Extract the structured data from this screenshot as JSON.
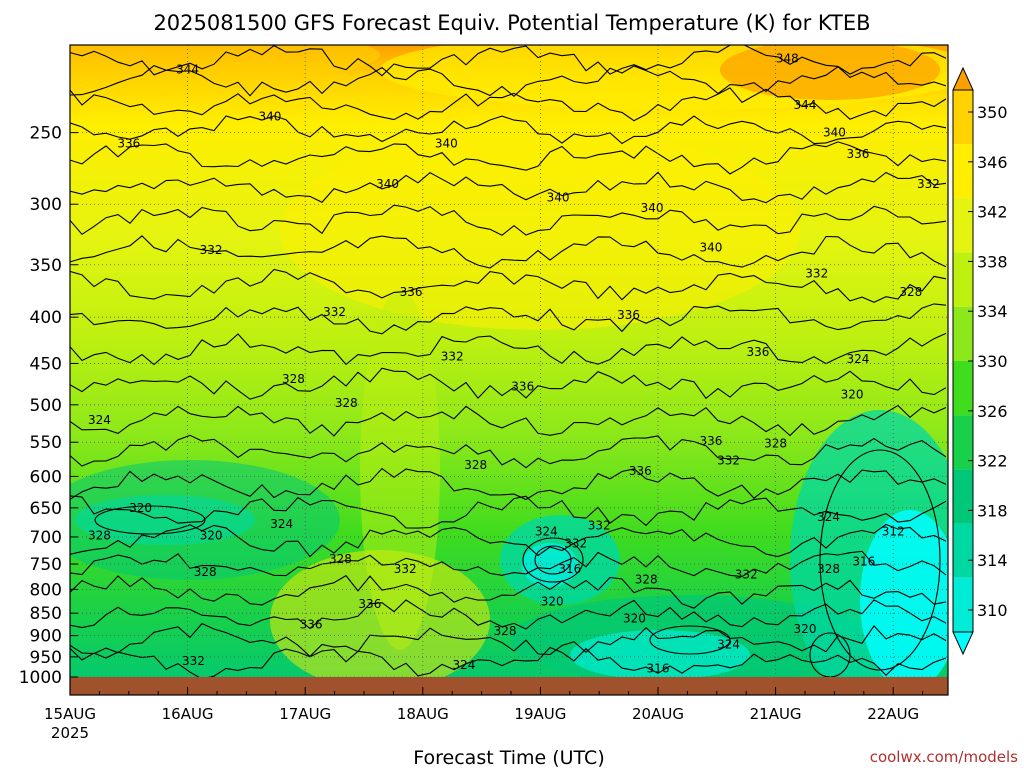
{
  "chart_data": {
    "type": "contour",
    "title": "2025081500 GFS Forecast Equiv. Potential Temperature (K) for KTEB",
    "xlabel": "Forecast Time (UTC)",
    "ylabel": "",
    "x_ticks": [
      "15AUG",
      "16AUG",
      "17AUG",
      "18AUG",
      "19AUG",
      "20AUG",
      "21AUG",
      "22AUG"
    ],
    "x_year": "2025",
    "xlim_days": [
      0,
      7.5
    ],
    "y_ticks": [
      250,
      300,
      350,
      400,
      450,
      500,
      550,
      600,
      650,
      700,
      750,
      800,
      850,
      900,
      950,
      1000
    ],
    "ylim_hpa": [
      200,
      1000
    ],
    "y_scale": "log-pressure (inverted)",
    "grid": true,
    "colorbar": {
      "levels": [
        310,
        314,
        318,
        322,
        326,
        330,
        334,
        338,
        342,
        346,
        350
      ],
      "labels": [
        "310",
        "314",
        "318",
        "322",
        "326",
        "330",
        "334",
        "338",
        "342",
        "346",
        "350"
      ],
      "colors": [
        "#00ffff",
        "#00ecd6",
        "#00d8a4",
        "#00c878",
        "#18d04a",
        "#40dc1e",
        "#8ce81a",
        "#bef010",
        "#e4f410",
        "#ffee00",
        "#ffd200",
        "#fca000"
      ],
      "extend": "both"
    },
    "contour_labels": [
      {
        "t": 1.0,
        "p": 213,
        "v": "344"
      },
      {
        "t": 1.7,
        "p": 240,
        "v": "340"
      },
      {
        "t": 0.5,
        "p": 257,
        "v": "336"
      },
      {
        "t": 3.2,
        "p": 257,
        "v": "340"
      },
      {
        "t": 2.7,
        "p": 285,
        "v": "340"
      },
      {
        "t": 4.15,
        "p": 295,
        "v": "340"
      },
      {
        "t": 4.95,
        "p": 303,
        "v": "340"
      },
      {
        "t": 5.45,
        "p": 335,
        "v": "340"
      },
      {
        "t": 6.1,
        "p": 207,
        "v": "348"
      },
      {
        "t": 6.25,
        "p": 233,
        "v": "344"
      },
      {
        "t": 6.5,
        "p": 250,
        "v": "340"
      },
      {
        "t": 6.7,
        "p": 264,
        "v": "336"
      },
      {
        "t": 7.3,
        "p": 285,
        "v": "332"
      },
      {
        "t": 1.2,
        "p": 337,
        "v": "332"
      },
      {
        "t": 2.9,
        "p": 375,
        "v": "336"
      },
      {
        "t": 2.25,
        "p": 395,
        "v": "332"
      },
      {
        "t": 4.75,
        "p": 398,
        "v": "336"
      },
      {
        "t": 6.35,
        "p": 358,
        "v": "332"
      },
      {
        "t": 7.15,
        "p": 375,
        "v": "328"
      },
      {
        "t": 3.25,
        "p": 442,
        "v": "332"
      },
      {
        "t": 5.85,
        "p": 437,
        "v": "336"
      },
      {
        "t": 6.7,
        "p": 445,
        "v": "324"
      },
      {
        "t": 3.85,
        "p": 477,
        "v": "336"
      },
      {
        "t": 1.9,
        "p": 468,
        "v": "328"
      },
      {
        "t": 2.35,
        "p": 498,
        "v": "328"
      },
      {
        "t": 6.65,
        "p": 487,
        "v": "320"
      },
      {
        "t": 0.25,
        "p": 520,
        "v": "324"
      },
      {
        "t": 5.45,
        "p": 548,
        "v": "336"
      },
      {
        "t": 6.0,
        "p": 552,
        "v": "328"
      },
      {
        "t": 3.45,
        "p": 583,
        "v": "328"
      },
      {
        "t": 5.6,
        "p": 576,
        "v": "332"
      },
      {
        "t": 4.85,
        "p": 592,
        "v": "336"
      },
      {
        "t": 0.6,
        "p": 650,
        "v": "320"
      },
      {
        "t": 1.8,
        "p": 677,
        "v": "324"
      },
      {
        "t": 6.45,
        "p": 665,
        "v": "324"
      },
      {
        "t": 0.25,
        "p": 697,
        "v": "328"
      },
      {
        "t": 1.2,
        "p": 697,
        "v": "320"
      },
      {
        "t": 4.05,
        "p": 690,
        "v": "324"
      },
      {
        "t": 4.5,
        "p": 680,
        "v": "332"
      },
      {
        "t": 4.3,
        "p": 712,
        "v": "332"
      },
      {
        "t": 7.0,
        "p": 690,
        "v": "312"
      },
      {
        "t": 2.3,
        "p": 740,
        "v": "328"
      },
      {
        "t": 2.85,
        "p": 760,
        "v": "332"
      },
      {
        "t": 1.15,
        "p": 765,
        "v": "328"
      },
      {
        "t": 4.25,
        "p": 760,
        "v": "316"
      },
      {
        "t": 5.75,
        "p": 770,
        "v": "332"
      },
      {
        "t": 6.45,
        "p": 760,
        "v": "328"
      },
      {
        "t": 6.75,
        "p": 745,
        "v": "316"
      },
      {
        "t": 4.9,
        "p": 780,
        "v": "328"
      },
      {
        "t": 4.1,
        "p": 825,
        "v": "320"
      },
      {
        "t": 2.55,
        "p": 830,
        "v": "336"
      },
      {
        "t": 4.8,
        "p": 862,
        "v": "320"
      },
      {
        "t": 1.05,
        "p": 960,
        "v": "332"
      },
      {
        "t": 2.05,
        "p": 875,
        "v": "336"
      },
      {
        "t": 3.7,
        "p": 890,
        "v": "328"
      },
      {
        "t": 6.25,
        "p": 885,
        "v": "320"
      },
      {
        "t": 5.6,
        "p": 920,
        "v": "324"
      },
      {
        "t": 3.35,
        "p": 970,
        "v": "324"
      },
      {
        "t": 5.0,
        "p": 978,
        "v": "316"
      }
    ]
  },
  "credit": "coolwx.com/models"
}
